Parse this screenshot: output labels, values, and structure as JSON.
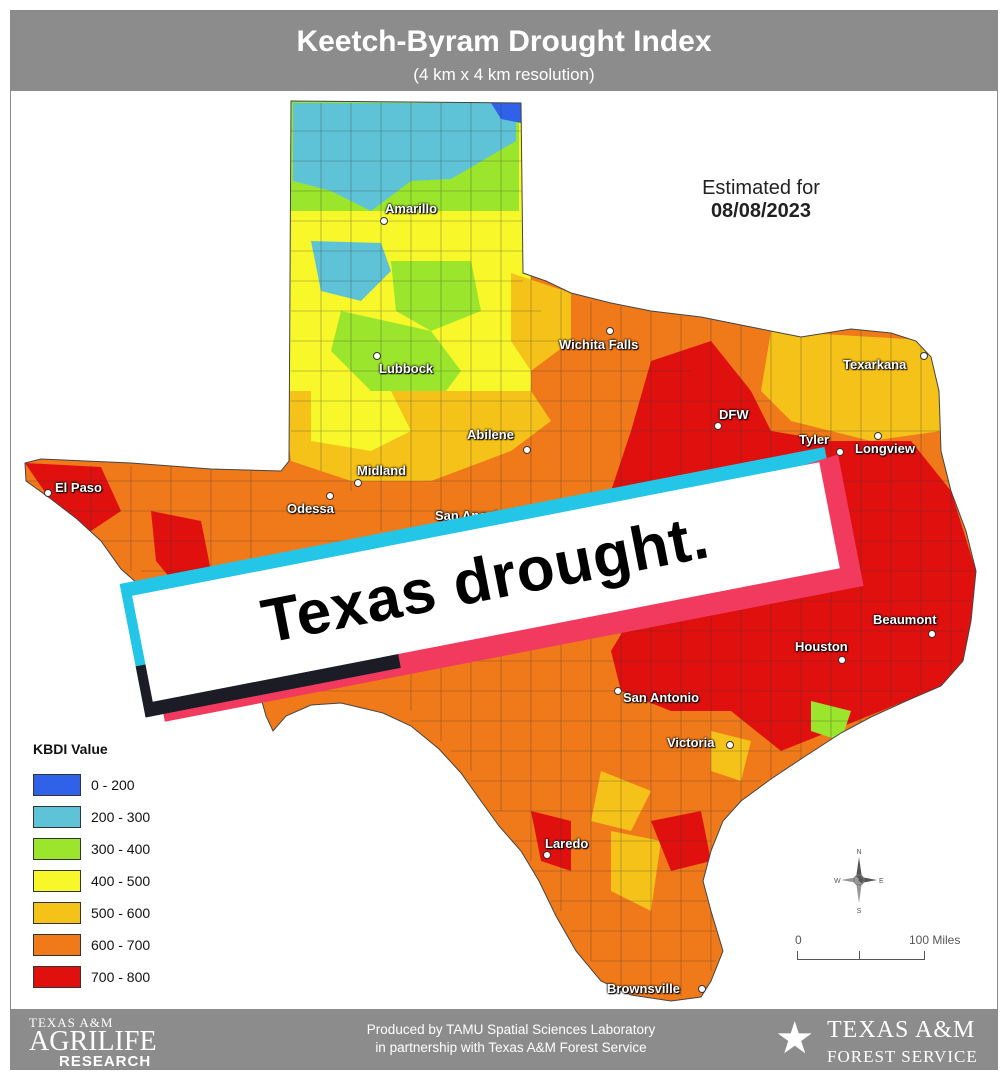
{
  "header": {
    "title": "Keetch-Byram Drought Index",
    "subtitle": "(4 km x 4 km resolution)"
  },
  "estimate": {
    "label": "Estimated for",
    "date": "08/08/2023"
  },
  "legend": {
    "title": "KBDI Value",
    "items": [
      {
        "label": "0 - 200",
        "color": "#2f62e8"
      },
      {
        "label": "200 - 300",
        "color": "#5ec3d6"
      },
      {
        "label": "300 - 400",
        "color": "#9be62c"
      },
      {
        "label": "400 - 500",
        "color": "#f7f72a"
      },
      {
        "label": "500 - 600",
        "color": "#f5c21a"
      },
      {
        "label": "600 - 700",
        "color": "#f07a1a"
      },
      {
        "label": "700 - 800",
        "color": "#e0100f"
      }
    ]
  },
  "cities": [
    {
      "name": "Amarillo"
    },
    {
      "name": "Wichita Falls"
    },
    {
      "name": "Lubbock"
    },
    {
      "name": "Texarkana"
    },
    {
      "name": "DFW"
    },
    {
      "name": "Abilene"
    },
    {
      "name": "Tyler"
    },
    {
      "name": "Longview"
    },
    {
      "name": "Midland"
    },
    {
      "name": "El Paso"
    },
    {
      "name": "Odessa"
    },
    {
      "name": "San Angelo"
    },
    {
      "name": "Beaumont"
    },
    {
      "name": "Houston"
    },
    {
      "name": "San Antonio"
    },
    {
      "name": "Victoria"
    },
    {
      "name": "Laredo"
    },
    {
      "name": "Brownsville"
    }
  ],
  "scale": {
    "start": "0",
    "end": "100 Miles"
  },
  "compass": {
    "n": "N",
    "s": "S",
    "e": "E",
    "w": "W"
  },
  "footer": {
    "produced_line1": "Produced by TAMU Spatial Sciences Laboratory",
    "produced_line2": "in partnership with Texas A&M Forest Service",
    "agrilife_1": "TEXAS A&M",
    "agrilife_2": "AGRILIFE",
    "agrilife_3": "RESEARCH",
    "forest_1": "TEXAS A&M",
    "forest_2": "FOREST SERVICE"
  },
  "overlay": {
    "caption": "Texas drought."
  }
}
